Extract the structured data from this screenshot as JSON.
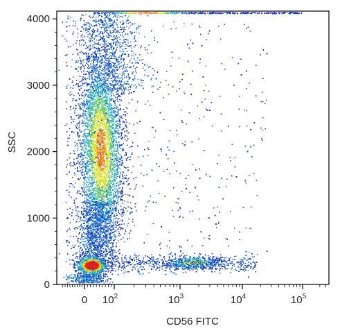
{
  "chart_data": {
    "type": "scatter",
    "title": "",
    "xlabel": "CD56 FITC",
    "ylabel": "SSC",
    "x_scale": "biexponential",
    "x_tick_labels": [
      "0",
      "10^2",
      "10^3",
      "10^4",
      "10^5"
    ],
    "x_tick_values": [
      0,
      100,
      1000,
      10000,
      100000
    ],
    "y_tick_labels": [
      "0",
      "1000",
      "2000",
      "3000",
      "4000"
    ],
    "y_tick_values": [
      0,
      1000,
      2000,
      3000,
      4000
    ],
    "xlim": [
      -100,
      200000
    ],
    "ylim": [
      0,
      4096
    ],
    "grid": false,
    "legend": "none",
    "color_scale": "density: blue (low) -> cyan -> green -> yellow -> red (high)",
    "colors": [
      "#1f3fbf",
      "#2a7bd6",
      "#27b8c8",
      "#5cc868",
      "#d8e030",
      "#f08a20",
      "#e8201c"
    ],
    "populations": [
      {
        "description": "lymphocytes (CD56 negative)",
        "x_center": 20,
        "y_center": 270,
        "x_spread_decades": 0.25,
        "y_spread": 60,
        "peak_density": "high (red)"
      },
      {
        "description": "granulocytes (CD56 negative)",
        "x_center": 45,
        "y_center": 2000,
        "x_spread_decades": 0.3,
        "y_spread": 650,
        "peak_density": "medium (yellow-green)"
      },
      {
        "description": "NK cells (CD56 positive)",
        "x_center": 1800,
        "y_center": 330,
        "x_spread_decades": 0.35,
        "y_spread": 55,
        "peak_density": "low (cyan-green)"
      },
      {
        "description": "saturated events at SSC max",
        "x_center": 200,
        "y_center": 4096,
        "x_spread_decades": 0.4,
        "y_spread": 0,
        "peak_density": "medium (orange)"
      }
    ]
  }
}
